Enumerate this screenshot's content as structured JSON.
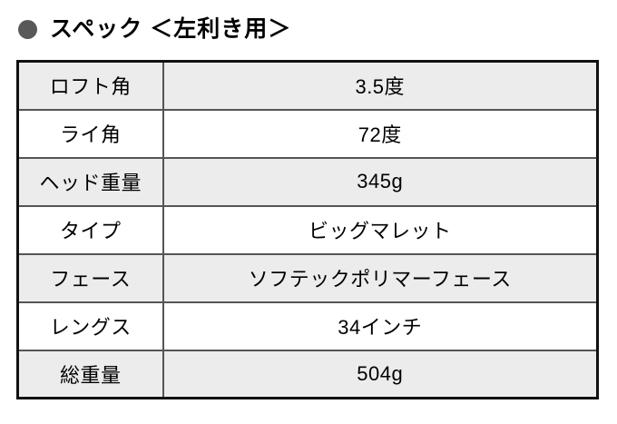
{
  "header": {
    "title": "スペック ＜左利き用＞",
    "bullet_color": "#595959"
  },
  "table": {
    "rows": [
      {
        "label": "ロフト角",
        "value": "3.5度"
      },
      {
        "label": "ライ角",
        "value": "72度"
      },
      {
        "label": "ヘッド重量",
        "value": "345g"
      },
      {
        "label": "タイプ",
        "value": "ビッグマレット"
      },
      {
        "label": "フェース",
        "value": "ソフテックポリマーフェース"
      },
      {
        "label": "レングス",
        "value": "34インチ"
      },
      {
        "label": "総重量",
        "value": "504g"
      }
    ],
    "colors": {
      "row_alt_bg": "#ececec",
      "row_bg": "#ffffff",
      "inner_border": "#555555",
      "outer_border": "#111111",
      "text": "#000000"
    }
  }
}
